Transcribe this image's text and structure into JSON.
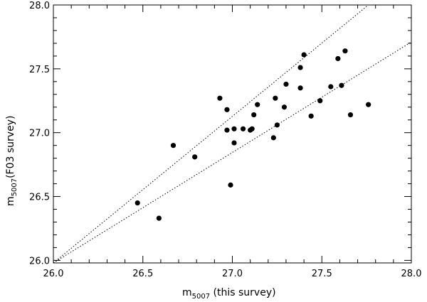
{
  "chart_data": {
    "type": "scatter",
    "title": "",
    "xlabel": {
      "main": "m",
      "sub": "5007",
      "suffix": " (this survey)"
    },
    "ylabel": {
      "main": "m",
      "sub": "5007",
      "suffix": "(F03 survey)"
    },
    "xlim": [
      26.0,
      28.0
    ],
    "ylim": [
      25.98,
      28.0
    ],
    "x_ticks": [
      "26.0",
      "26.5",
      "27.0",
      "27.5",
      "28.0"
    ],
    "y_ticks": [
      "26.0",
      "26.5",
      "27.0",
      "27.5",
      "28.0"
    ],
    "grid": false,
    "points": [
      {
        "x": 26.47,
        "y": 26.45
      },
      {
        "x": 26.59,
        "y": 26.33
      },
      {
        "x": 26.67,
        "y": 26.9
      },
      {
        "x": 26.79,
        "y": 26.81
      },
      {
        "x": 26.93,
        "y": 27.27
      },
      {
        "x": 26.97,
        "y": 27.18
      },
      {
        "x": 26.97,
        "y": 27.02
      },
      {
        "x": 26.99,
        "y": 26.59
      },
      {
        "x": 27.01,
        "y": 27.03
      },
      {
        "x": 27.01,
        "y": 26.92
      },
      {
        "x": 27.06,
        "y": 27.03
      },
      {
        "x": 27.1,
        "y": 27.02
      },
      {
        "x": 27.11,
        "y": 27.03
      },
      {
        "x": 27.12,
        "y": 27.14
      },
      {
        "x": 27.14,
        "y": 27.22
      },
      {
        "x": 27.23,
        "y": 26.96
      },
      {
        "x": 27.24,
        "y": 27.27
      },
      {
        "x": 27.25,
        "y": 27.06
      },
      {
        "x": 27.29,
        "y": 27.2
      },
      {
        "x": 27.3,
        "y": 27.38
      },
      {
        "x": 27.38,
        "y": 27.51
      },
      {
        "x": 27.38,
        "y": 27.35
      },
      {
        "x": 27.4,
        "y": 27.61
      },
      {
        "x": 27.44,
        "y": 27.13
      },
      {
        "x": 27.49,
        "y": 27.25
      },
      {
        "x": 27.55,
        "y": 27.36
      },
      {
        "x": 27.59,
        "y": 27.58
      },
      {
        "x": 27.61,
        "y": 27.37
      },
      {
        "x": 27.63,
        "y": 27.64
      },
      {
        "x": 27.66,
        "y": 27.14
      },
      {
        "x": 27.76,
        "y": 27.22
      }
    ],
    "lines": [
      {
        "style": "dotted",
        "x": [
          26.0,
          27.76
        ],
        "y": [
          25.98,
          28.0
        ]
      },
      {
        "style": "dotted",
        "x": [
          26.0,
          28.0
        ],
        "y": [
          25.98,
          27.71
        ]
      }
    ]
  }
}
